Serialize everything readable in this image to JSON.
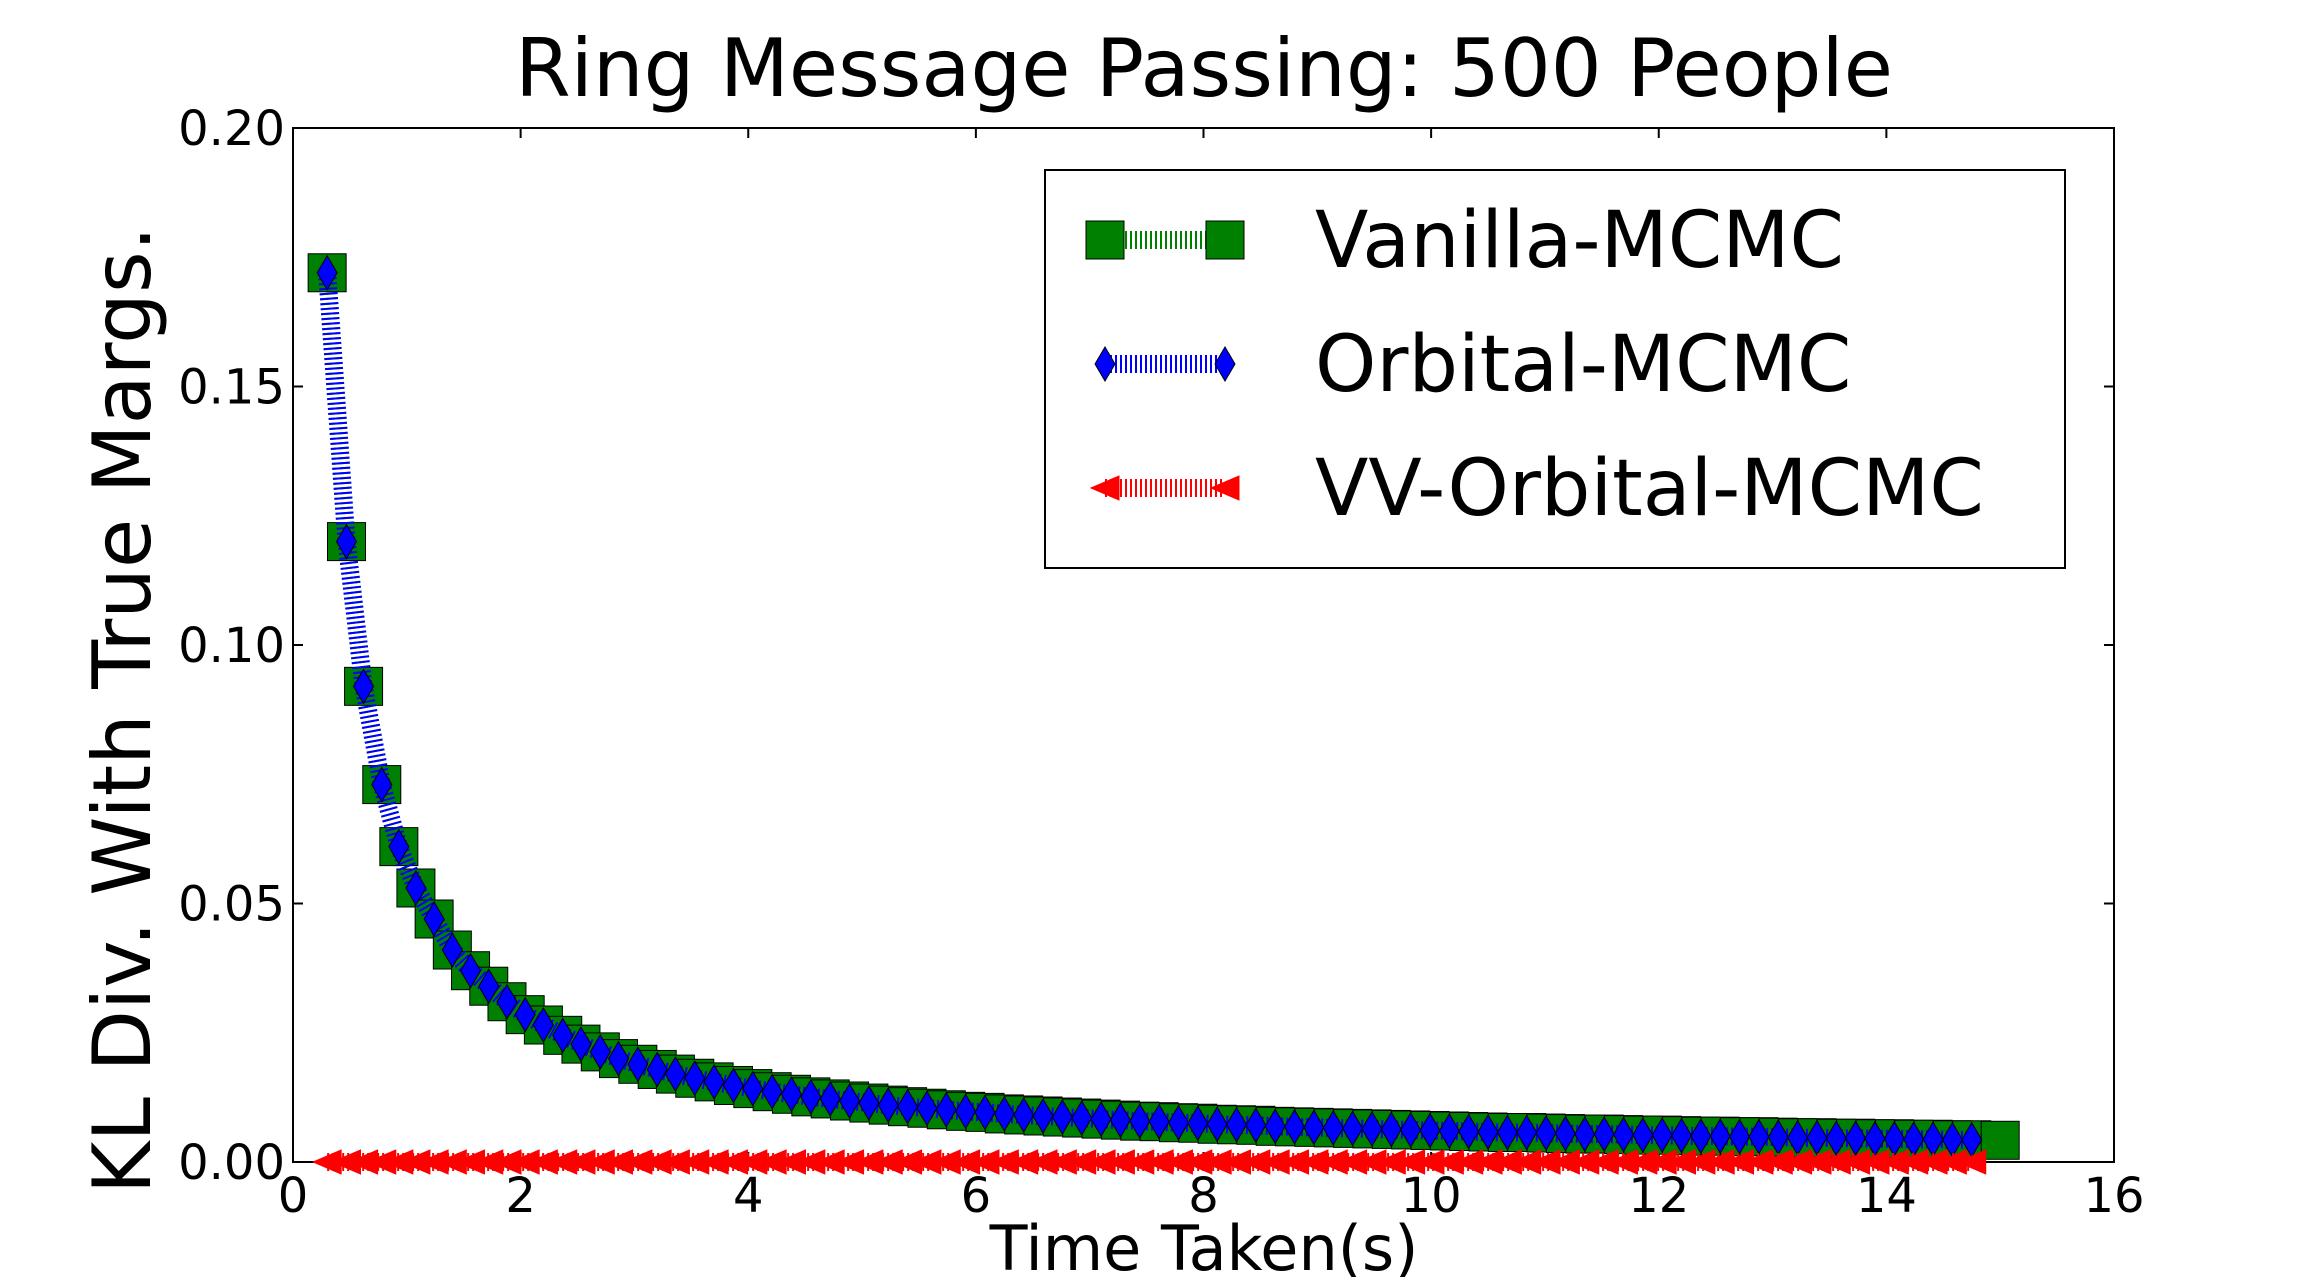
{
  "chart_data": {
    "type": "line",
    "title": "Ring Message Passing: 500 People",
    "xlabel": "Time Taken(s)",
    "ylabel": "KL Div. With True Margs.",
    "xlim": [
      0,
      16
    ],
    "ylim": [
      0,
      0.2
    ],
    "xticks": [
      0,
      2,
      4,
      6,
      8,
      10,
      12,
      14,
      16
    ],
    "yticks": [
      0.0,
      0.05,
      0.1,
      0.15,
      0.2
    ],
    "xtick_labels": [
      "0",
      "2",
      "4",
      "6",
      "8",
      "10",
      "12",
      "14",
      "16"
    ],
    "ytick_labels": [
      "0.00",
      "0.05",
      "0.10",
      "0.15",
      "0.20"
    ],
    "grid": false,
    "legend_position": "top-right",
    "series": [
      {
        "name": "Vanilla-MCMC",
        "color": "#008000",
        "marker": "square",
        "x": [
          0.3,
          0.47,
          0.62,
          0.78,
          0.93,
          1.08,
          1.24,
          1.4,
          1.56,
          1.72,
          1.88,
          2.04,
          2.2,
          2.37,
          2.53,
          2.7,
          2.86,
          3.03,
          3.2,
          3.36,
          3.53,
          3.7,
          3.87,
          4.04,
          4.21,
          4.38,
          4.55,
          4.72,
          4.89,
          5.06,
          5.23,
          5.4,
          5.57,
          5.74,
          5.91,
          6.08,
          6.25,
          6.42,
          6.59,
          6.76,
          6.93,
          7.1,
          7.27,
          7.44,
          7.61,
          7.78,
          7.95,
          8.12,
          8.29,
          8.46,
          8.63,
          8.8,
          8.97,
          9.14,
          9.31,
          9.48,
          9.65,
          9.82,
          9.99,
          10.16,
          10.33,
          10.5,
          10.67,
          10.84,
          11.01,
          11.18,
          11.35,
          11.52,
          11.69,
          11.86,
          12.03,
          12.2,
          12.37,
          12.54,
          12.71,
          12.88,
          13.05,
          13.22,
          13.39,
          13.56,
          13.73,
          13.9,
          14.07,
          14.24,
          14.41,
          14.58,
          14.75,
          15.0
        ],
        "y": [
          0.172,
          0.12,
          0.092,
          0.073,
          0.061,
          0.053,
          0.047,
          0.041,
          0.037,
          0.034,
          0.031,
          0.0285,
          0.0265,
          0.0245,
          0.0228,
          0.0213,
          0.02,
          0.0189,
          0.0179,
          0.017,
          0.0162,
          0.0155,
          0.0148,
          0.0142,
          0.0136,
          0.0131,
          0.0126,
          0.0122,
          0.0118,
          0.0114,
          0.011,
          0.0107,
          0.0104,
          0.0101,
          0.0098,
          0.0096,
          0.0093,
          0.0091,
          0.0089,
          0.0087,
          0.0085,
          0.0083,
          0.0081,
          0.0079,
          0.0078,
          0.0076,
          0.0075,
          0.0073,
          0.0072,
          0.0071,
          0.0069,
          0.0068,
          0.0067,
          0.0066,
          0.0065,
          0.0064,
          0.0063,
          0.0062,
          0.0061,
          0.006,
          0.0059,
          0.0058,
          0.0057,
          0.0057,
          0.0056,
          0.0055,
          0.0054,
          0.0054,
          0.0053,
          0.0052,
          0.0052,
          0.0051,
          0.005,
          0.005,
          0.0049,
          0.0049,
          0.0048,
          0.0047,
          0.0047,
          0.0046,
          0.0046,
          0.0045,
          0.0045,
          0.0044,
          0.0044,
          0.0043,
          0.0043,
          0.0042
        ]
      },
      {
        "name": "Orbital-MCMC",
        "color": "#0000ff",
        "marker": "diamond",
        "x": [
          0.3,
          0.47,
          0.62,
          0.78,
          0.93,
          1.08,
          1.24,
          1.4,
          1.56,
          1.72,
          1.88,
          2.04,
          2.2,
          2.37,
          2.53,
          2.7,
          2.86,
          3.03,
          3.2,
          3.36,
          3.53,
          3.7,
          3.87,
          4.04,
          4.21,
          4.38,
          4.55,
          4.72,
          4.89,
          5.06,
          5.23,
          5.4,
          5.57,
          5.74,
          5.91,
          6.08,
          6.25,
          6.42,
          6.59,
          6.76,
          6.93,
          7.1,
          7.27,
          7.44,
          7.61,
          7.78,
          7.95,
          8.12,
          8.29,
          8.46,
          8.63,
          8.8,
          8.97,
          9.14,
          9.31,
          9.48,
          9.65,
          9.82,
          9.99,
          10.16,
          10.33,
          10.5,
          10.67,
          10.84,
          11.01,
          11.18,
          11.35,
          11.52,
          11.69,
          11.86,
          12.03,
          12.2,
          12.37,
          12.54,
          12.71,
          12.88,
          13.05,
          13.22,
          13.39,
          13.56,
          13.73,
          13.9,
          14.07,
          14.24,
          14.41,
          14.58,
          14.75
        ],
        "y": [
          0.172,
          0.12,
          0.092,
          0.073,
          0.061,
          0.053,
          0.047,
          0.041,
          0.037,
          0.034,
          0.031,
          0.0285,
          0.0265,
          0.0245,
          0.0228,
          0.0213,
          0.02,
          0.0189,
          0.0179,
          0.017,
          0.0162,
          0.0155,
          0.0148,
          0.0142,
          0.0136,
          0.0131,
          0.0126,
          0.0122,
          0.0118,
          0.0114,
          0.011,
          0.0107,
          0.0104,
          0.0101,
          0.0098,
          0.0096,
          0.0093,
          0.0091,
          0.0089,
          0.0087,
          0.0085,
          0.0083,
          0.0081,
          0.0079,
          0.0078,
          0.0076,
          0.0075,
          0.0073,
          0.0072,
          0.0071,
          0.0069,
          0.0068,
          0.0067,
          0.0066,
          0.0065,
          0.0064,
          0.0063,
          0.0062,
          0.0061,
          0.006,
          0.0059,
          0.0058,
          0.0057,
          0.0057,
          0.0056,
          0.0055,
          0.0054,
          0.0054,
          0.0053,
          0.0052,
          0.0052,
          0.0051,
          0.005,
          0.005,
          0.0049,
          0.0049,
          0.0048,
          0.0047,
          0.0047,
          0.0046,
          0.0046,
          0.0045,
          0.0045,
          0.0044,
          0.0044,
          0.0043,
          0.0043
        ]
      },
      {
        "name": "VV-Orbital-MCMC",
        "color": "#ff0000",
        "marker": "triangle-left",
        "x": [
          0.3,
          0.47,
          0.62,
          0.78,
          0.93,
          1.08,
          1.24,
          1.4,
          1.56,
          1.72,
          1.88,
          2.04,
          2.2,
          2.37,
          2.53,
          2.7,
          2.86,
          3.03,
          3.2,
          3.36,
          3.53,
          3.7,
          3.87,
          4.04,
          4.21,
          4.38,
          4.55,
          4.72,
          4.89,
          5.06,
          5.23,
          5.4,
          5.57,
          5.74,
          5.91,
          6.08,
          6.25,
          6.42,
          6.59,
          6.76,
          6.93,
          7.1,
          7.27,
          7.44,
          7.61,
          7.78,
          7.95,
          8.12,
          8.29,
          8.46,
          8.63,
          8.8,
          8.97,
          9.14,
          9.31,
          9.48,
          9.65,
          9.82,
          9.99,
          10.16,
          10.33,
          10.5,
          10.67,
          10.84,
          11.01,
          11.18,
          11.35,
          11.52,
          11.69,
          11.86,
          12.03,
          12.2,
          12.37,
          12.54,
          12.71,
          12.88,
          13.05,
          13.22,
          13.39,
          13.56,
          13.73,
          13.9,
          14.07,
          14.24,
          14.41,
          14.58,
          14.75
        ],
        "y": [
          0.0,
          0.0,
          0.0,
          0.0,
          0.0,
          0.0,
          0.0,
          0.0,
          0.0,
          0.0,
          0.0,
          0.0,
          0.0,
          0.0,
          0.0,
          0.0,
          0.0,
          0.0,
          0.0,
          0.0,
          0.0,
          0.0,
          0.0,
          0.0,
          0.0,
          0.0,
          0.0,
          0.0,
          0.0,
          0.0,
          0.0,
          0.0,
          0.0,
          0.0,
          0.0,
          0.0,
          0.0,
          0.0,
          0.0,
          0.0,
          0.0,
          0.0,
          0.0,
          0.0,
          0.0,
          0.0,
          0.0,
          0.0,
          0.0,
          0.0,
          0.0,
          0.0,
          0.0,
          0.0,
          0.0,
          0.0,
          0.0,
          0.0,
          0.0,
          0.0,
          0.0,
          0.0,
          0.0,
          0.0,
          0.0,
          0.0,
          0.0,
          0.0,
          0.0,
          0.0,
          0.0,
          0.0,
          0.0,
          0.0,
          0.0,
          0.0,
          0.0,
          0.0,
          0.0,
          0.0,
          0.0,
          0.0,
          0.0,
          0.0,
          0.0,
          0.0,
          0.0
        ]
      }
    ]
  }
}
